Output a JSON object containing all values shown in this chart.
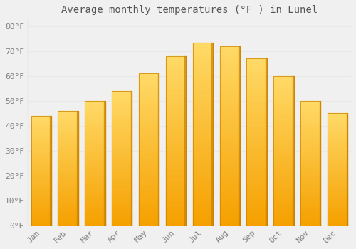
{
  "months": [
    "Jan",
    "Feb",
    "Mar",
    "Apr",
    "May",
    "Jun",
    "Jul",
    "Aug",
    "Sep",
    "Oct",
    "Nov",
    "Dec"
  ],
  "values": [
    44,
    46,
    50,
    54,
    61,
    68,
    73.5,
    72,
    67,
    60,
    50,
    45
  ],
  "bar_color_top": "#FFD966",
  "bar_color_bottom": "#F5A000",
  "bar_edge_color": "#C88000",
  "title": "Average monthly temperatures (°F ) in Lunel",
  "title_fontsize": 10,
  "ylabel_ticks": [
    "0°F",
    "10°F",
    "20°F",
    "30°F",
    "40°F",
    "50°F",
    "60°F",
    "70°F",
    "80°F"
  ],
  "ytick_values": [
    0,
    10,
    20,
    30,
    40,
    50,
    60,
    70,
    80
  ],
  "ylim": [
    0,
    83
  ],
  "background_color": "#f0f0f0",
  "grid_color": "#e8e8e8",
  "tick_label_color": "#808080",
  "title_color": "#555555",
  "font_family": "monospace"
}
